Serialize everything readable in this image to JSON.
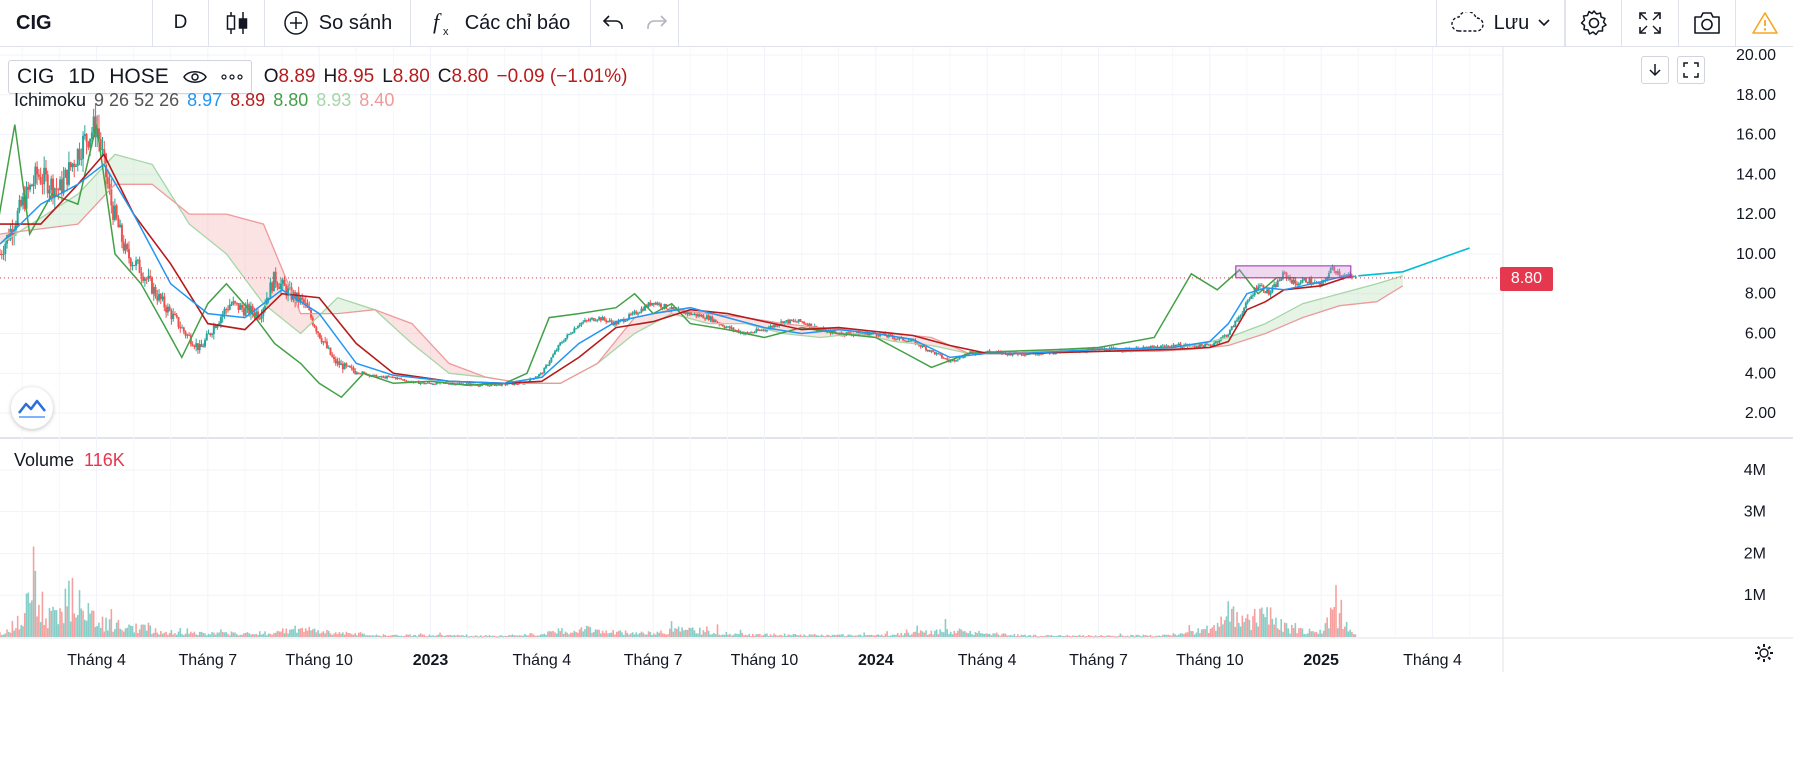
{
  "toolbar": {
    "symbol": "CIG",
    "interval": "D",
    "compare_label": "So sánh",
    "indicators_label": "Các chỉ báo",
    "save_label": "Lưu"
  },
  "legend": {
    "symbol": "CIG",
    "interval": "1D",
    "exchange": "HOSE",
    "open_key": "O",
    "open": "8.89",
    "high_key": "H",
    "high": "8.95",
    "low_key": "L",
    "low": "8.80",
    "close_key": "C",
    "close": "8.80",
    "change": "−0.09 (−1.01%)",
    "ichimoku_label": "Ichimoku",
    "ichimoku_params": "9 26 52 26",
    "ichimoku_values": [
      "8.97",
      "8.89",
      "8.80",
      "8.93",
      "8.40"
    ],
    "ichimoku_colors": [
      "#2196f3",
      "#b71c1c",
      "#43a047",
      "#a5d6a7",
      "#ef9a9a"
    ],
    "volume_label": "Volume",
    "volume_value": "116K"
  },
  "current_price_label": "8.80",
  "colors": {
    "up": "#26a69a",
    "down": "#ef5350",
    "tenkan": "#2196f3",
    "kijun": "#b71c1c",
    "chikou": "#43a047",
    "span_a": "#a5d6a7",
    "span_b": "#ef9a9a",
    "rectangle": "#ce93d8",
    "projection": "#00bcd4",
    "price_label_bg": "#e5374e"
  },
  "chart_data": {
    "type": "candlestick",
    "symbol": "CIG",
    "interval": "1D",
    "price_axis_ticks": [
      "20.00",
      "18.00",
      "16.00",
      "14.00",
      "12.00",
      "10.00",
      "8.00",
      "6.00",
      "4.00",
      "2.00"
    ],
    "price_axis_range": [
      0.8,
      20.4
    ],
    "volume_axis_ticks": [
      "4M",
      "3M",
      "2M",
      "1M"
    ],
    "volume_axis_range": [
      0,
      4500000
    ],
    "time_axis_labels": [
      "Tháng 4",
      "Tháng 7",
      "Tháng 10",
      "2023",
      "Tháng 4",
      "Tháng 7",
      "Tháng 10",
      "2024",
      "Tháng 4",
      "Tháng 7",
      "Tháng 10",
      "2025",
      "Tháng 4"
    ],
    "time_axis_bold": [
      false,
      false,
      false,
      true,
      false,
      false,
      false,
      true,
      false,
      false,
      false,
      true,
      false
    ],
    "time_axis_months": [
      3,
      6,
      9,
      12,
      15,
      18,
      21,
      24,
      27,
      30,
      33,
      36,
      39
    ],
    "time_range_months": [
      0.4,
      40.9
    ],
    "last_price": 8.8,
    "close_series": {
      "months": [
        0.4,
        1.0,
        1.4,
        2.0,
        2.6,
        3.0,
        3.4,
        3.8,
        4.2,
        4.6,
        5.0,
        5.4,
        5.8,
        6.2,
        6.6,
        7.0,
        7.4,
        7.8,
        8.2,
        8.6,
        9.0,
        9.4,
        9.8,
        10.2,
        10.6,
        11.0,
        11.4,
        11.8,
        12.5,
        13.5,
        14.5,
        15.0,
        15.5,
        16.0,
        16.5,
        17.0,
        17.5,
        18.0,
        18.5,
        19.0,
        19.5,
        20.0,
        20.5,
        21.0,
        21.5,
        22.0,
        22.5,
        23.0,
        24.0,
        25.0,
        26.0,
        26.5,
        27.0,
        27.5,
        28.0,
        29.0,
        30.0,
        31.0,
        32.0,
        33.0,
        33.5,
        34.0,
        34.3,
        34.6,
        35.0,
        35.3,
        35.6,
        36.0,
        36.3,
        36.6,
        36.9
      ],
      "values": [
        10.0,
        12.5,
        14.0,
        13.2,
        15.5,
        16.5,
        12.5,
        10.0,
        9.2,
        8.0,
        7.0,
        6.0,
        5.2,
        6.5,
        7.5,
        7.2,
        7.0,
        8.8,
        8.0,
        7.5,
        6.0,
        4.6,
        4.2,
        4.0,
        3.8,
        3.8,
        3.6,
        3.5,
        3.5,
        3.4,
        3.5,
        4.0,
        5.5,
        6.5,
        6.8,
        6.5,
        7.0,
        7.6,
        7.2,
        7.0,
        6.8,
        6.3,
        6.0,
        6.2,
        6.6,
        6.6,
        6.2,
        6.0,
        6.0,
        5.6,
        4.6,
        5.0,
        5.1,
        5.0,
        5.0,
        5.1,
        5.2,
        5.2,
        5.4,
        5.4,
        6.0,
        7.5,
        8.5,
        8.0,
        9.0,
        8.5,
        8.7,
        8.4,
        9.3,
        8.9,
        8.8
      ]
    },
    "tenkan_series": {
      "months": [
        0.4,
        1.5,
        2.5,
        3.2,
        4.0,
        5.0,
        6.0,
        7.0,
        8.0,
        9.0,
        10.0,
        11.0,
        12.5,
        14.0,
        15.0,
        16.0,
        17.0,
        18.0,
        19.0,
        20.0,
        21.0,
        22.0,
        23.0,
        24.0,
        25.0,
        26.0,
        27.0,
        28.0,
        30.0,
        32.0,
        33.0,
        33.5,
        34.0,
        34.5,
        35.0,
        36.0,
        36.8
      ],
      "values": [
        10.5,
        12.5,
        13.5,
        14.5,
        12.0,
        8.5,
        7.0,
        6.8,
        8.2,
        7.0,
        4.5,
        3.9,
        3.6,
        3.5,
        3.8,
        5.5,
        6.6,
        7.0,
        7.3,
        6.8,
        6.3,
        6.0,
        6.2,
        6.0,
        5.7,
        4.8,
        5.0,
        5.0,
        5.2,
        5.3,
        5.6,
        6.5,
        8.0,
        8.3,
        8.2,
        8.6,
        8.97
      ]
    },
    "kijun_series": {
      "months": [
        0.4,
        1.5,
        2.5,
        3.2,
        4.0,
        5.0,
        6.0,
        7.0,
        8.0,
        9.0,
        10.0,
        11.0,
        12.5,
        14.0,
        15.0,
        16.0,
        17.0,
        18.0,
        19.0,
        20.0,
        21.0,
        22.0,
        23.0,
        24.0,
        25.0,
        26.0,
        27.0,
        28.0,
        30.0,
        32.0,
        33.0,
        33.5,
        34.0,
        34.5,
        35.0,
        36.0,
        36.8
      ],
      "values": [
        11.5,
        11.5,
        13.5,
        15.0,
        12.0,
        9.5,
        6.5,
        6.2,
        8.0,
        7.8,
        5.5,
        4.0,
        3.6,
        3.5,
        3.6,
        4.8,
        6.3,
        6.6,
        7.2,
        7.0,
        6.6,
        6.2,
        6.3,
        6.1,
        5.9,
        5.4,
        5.0,
        5.0,
        5.1,
        5.2,
        5.3,
        5.6,
        7.2,
        7.6,
        8.2,
        8.4,
        8.89
      ]
    },
    "chikou_series": {
      "months": [
        0.2,
        0.8,
        1.2,
        1.8,
        2.5,
        3.0,
        3.5,
        4.2,
        4.8,
        5.3,
        6.0,
        6.5,
        7.2,
        7.8,
        8.5,
        9.0,
        9.6,
        10.2,
        11.0,
        12.0,
        13.0,
        14.0,
        14.6,
        15.2,
        16.0,
        17.0,
        17.5,
        18.0,
        18.5,
        19.0,
        20.0,
        21.0,
        22.0,
        23.0,
        24.0,
        24.8,
        25.5,
        26.5,
        27.5,
        29.0,
        30.0,
        31.5,
        32.5,
        33.2,
        33.8,
        34.3,
        34.8,
        35.3
      ],
      "values": [
        10.0,
        16.5,
        11.0,
        13.0,
        12.5,
        16.5,
        10.0,
        8.5,
        6.5,
        4.8,
        7.5,
        8.5,
        7.0,
        5.5,
        4.5,
        3.5,
        2.8,
        4.0,
        3.5,
        3.6,
        3.4,
        3.5,
        4.0,
        6.8,
        7.0,
        7.3,
        8.0,
        7.0,
        7.5,
        6.5,
        6.2,
        5.8,
        6.3,
        6.0,
        5.8,
        5.0,
        4.3,
        5.0,
        5.1,
        5.2,
        5.3,
        5.8,
        9.0,
        8.2,
        9.2,
        8.0,
        8.8,
        8.8
      ]
    },
    "span_a_series": {
      "months": [
        0.4,
        2.5,
        3.5,
        4.5,
        5.5,
        6.5,
        7.5,
        8.5,
        9.5,
        10.5,
        11.5,
        12.5,
        13.5,
        14.5,
        15.5,
        16.5,
        17.5,
        18.5,
        19.5,
        20.5,
        21.5,
        22.5,
        23.5,
        24.5,
        25.5,
        26.5,
        27.5,
        28.5,
        30.0,
        31.5,
        32.5,
        33.5,
        34.5,
        35.5,
        36.5,
        37.5,
        38.2
      ],
      "values": [
        10.5,
        13.0,
        15.0,
        14.5,
        11.5,
        10.0,
        7.5,
        6.0,
        7.8,
        7.2,
        5.5,
        4.0,
        3.8,
        3.5,
        3.5,
        4.5,
        6.0,
        7.0,
        6.5,
        6.5,
        6.0,
        5.8,
        6.0,
        5.6,
        5.4,
        5.0,
        5.0,
        5.1,
        5.2,
        5.2,
        5.4,
        5.8,
        6.5,
        7.5,
        8.0,
        8.5,
        8.9
      ]
    },
    "span_b_series": {
      "months": [
        0.4,
        2.5,
        3.5,
        4.5,
        5.5,
        6.5,
        7.5,
        8.5,
        9.5,
        10.5,
        11.5,
        12.5,
        13.5,
        14.5,
        15.5,
        16.5,
        17.5,
        18.5,
        19.5,
        20.5,
        21.5,
        22.5,
        23.5,
        24.5,
        25.5,
        26.5,
        27.5,
        28.5,
        30.0,
        31.5,
        32.5,
        33.5,
        34.5,
        35.5,
        36.5,
        37.5,
        38.2
      ],
      "values": [
        11.0,
        11.5,
        13.5,
        13.5,
        12.0,
        12.0,
        11.5,
        7.0,
        7.0,
        7.2,
        6.5,
        4.5,
        3.8,
        3.5,
        3.5,
        4.5,
        6.8,
        7.2,
        7.0,
        6.8,
        6.5,
        6.3,
        6.2,
        6.0,
        5.8,
        5.0,
        5.0,
        5.1,
        5.1,
        5.1,
        5.2,
        5.4,
        6.0,
        6.8,
        7.4,
        7.6,
        8.4
      ]
    },
    "projection_series": {
      "months": [
        37.0,
        37.6,
        38.2,
        38.8,
        39.4,
        40.0
      ],
      "values": [
        8.9,
        9.0,
        9.1,
        9.5,
        9.9,
        10.3
      ]
    },
    "range_box": {
      "x_months": [
        33.7,
        36.8
      ],
      "price": [
        8.8,
        9.4
      ]
    },
    "volume_profile": {
      "months": [
        0.5,
        1.0,
        1.3,
        1.6,
        2.0,
        2.4,
        2.8,
        3.2,
        4.0,
        5.0,
        6.0,
        7.5,
        8.5,
        9.5,
        10.5,
        12.0,
        14.0,
        15.0,
        16.0,
        17.0,
        18.0,
        19.0,
        20.0,
        21.0,
        22.0,
        24.0,
        25.0,
        26.0,
        27.0,
        28.0,
        30.0,
        32.0,
        33.0,
        33.5,
        34.0,
        34.5,
        35.0,
        35.5,
        36.0,
        36.3,
        36.6,
        36.9
      ],
      "values": [
        250000,
        600000,
        4000000,
        900000,
        1700000,
        2600000,
        1500000,
        800000,
        600000,
        300000,
        200000,
        250000,
        500000,
        250000,
        120000,
        100000,
        80000,
        200000,
        500000,
        300000,
        250000,
        450000,
        200000,
        150000,
        120000,
        100000,
        250000,
        400000,
        200000,
        100000,
        80000,
        100000,
        500000,
        1500000,
        900000,
        1500000,
        600000,
        400000,
        300000,
        1400000,
        800000,
        116000
      ]
    }
  }
}
